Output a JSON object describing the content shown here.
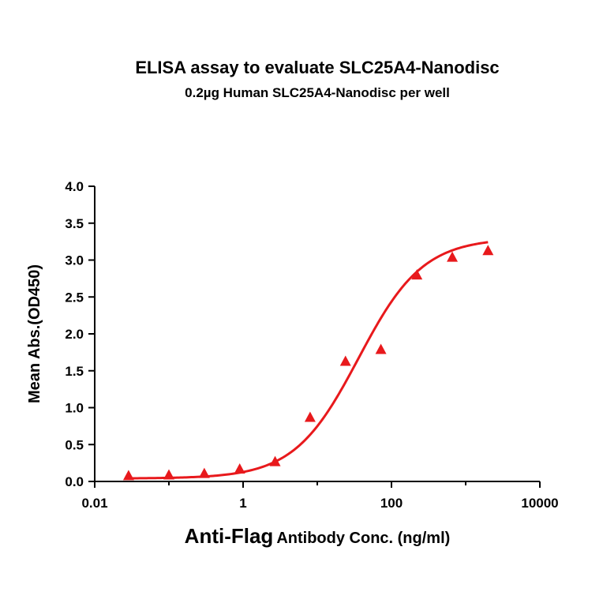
{
  "chart_data": {
    "type": "scatter",
    "title": "ELISA assay to evaluate SLC25A4-Nanodisc",
    "subtitle": "0.2µg Human SLC25A4-Nanodisc per well",
    "ylabel": "Mean Abs.(OD450)",
    "xlabel_prefix": "Anti-Flag",
    "xlabel_suffix": "Antibody Conc. (ng/ml)",
    "x_scale": "log",
    "xlim": [
      0.01,
      10000
    ],
    "ylim": [
      0,
      4.0
    ],
    "x_ticks": [
      0.01,
      1,
      100,
      10000
    ],
    "x_tick_labels": [
      "0.01",
      "1",
      "100",
      "10000"
    ],
    "y_ticks": [
      0,
      0.5,
      1.0,
      1.5,
      2.0,
      2.5,
      3.0,
      3.5,
      4.0
    ],
    "y_tick_labels": [
      "0.0",
      "0.5",
      "1.0",
      "1.5",
      "2.0",
      "2.5",
      "3.0",
      "3.5",
      "4.0"
    ],
    "grid": false,
    "color": "#e8191c",
    "series": [
      {
        "marker": "triangle",
        "x": [
          0.0286,
          0.1,
          0.3,
          0.9,
          2.7,
          8.0,
          24,
          72,
          220,
          660,
          2000
        ],
        "y": [
          0.07,
          0.08,
          0.1,
          0.16,
          0.26,
          0.86,
          1.62,
          1.78,
          2.79,
          3.03,
          3.12
        ]
      }
    ],
    "fit_curve": {
      "type": "4PL",
      "bottom": 0.04,
      "top": 3.3,
      "ec50": 36,
      "hill": 1.0
    }
  }
}
